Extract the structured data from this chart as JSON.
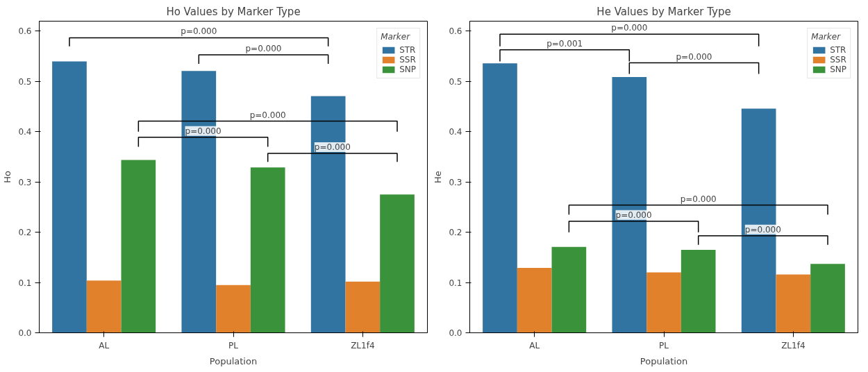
{
  "chart_data": [
    {
      "type": "bar",
      "title": "Ho Values by Marker Type",
      "xlabel": "Population",
      "ylabel": "Ho",
      "categories": [
        "AL",
        "PL",
        "ZL1f4"
      ],
      "series": [
        {
          "name": "STR",
          "color": "#3274a1",
          "values": [
            0.54,
            0.521,
            0.471
          ]
        },
        {
          "name": "SSR",
          "color": "#e1812c",
          "values": [
            0.104,
            0.095,
            0.102
          ]
        },
        {
          "name": "SNP",
          "color": "#3a923a",
          "values": [
            0.344,
            0.329,
            0.275
          ]
        }
      ],
      "ylim": [
        0,
        0.62
      ],
      "yticks": [
        {
          "value": 0,
          "label": "0.0"
        },
        {
          "value": 0.1,
          "label": "0.1"
        },
        {
          "value": 0.2,
          "label": "0.2"
        },
        {
          "value": 0.3,
          "label": "0.3"
        },
        {
          "value": 0.4,
          "label": "0.4"
        },
        {
          "value": 0.5,
          "label": "0.5"
        },
        {
          "value": 0.6,
          "label": "0.6"
        }
      ],
      "legend": "top right",
      "legend_title": "Marker",
      "grid": false,
      "annotations": [
        "p=0.000",
        "p=0.000",
        "p=0.000",
        "p=0.000",
        "p=0.000"
      ]
    },
    {
      "type": "bar",
      "title": "He Values by Marker Type",
      "xlabel": "Population",
      "ylabel": "He",
      "categories": [
        "AL",
        "PL",
        "ZL1f4"
      ],
      "series": [
        {
          "name": "STR",
          "color": "#3274a1",
          "values": [
            0.536,
            0.509,
            0.446
          ]
        },
        {
          "name": "SSR",
          "color": "#e1812c",
          "values": [
            0.129,
            0.12,
            0.116
          ]
        },
        {
          "name": "SNP",
          "color": "#3a923a",
          "values": [
            0.171,
            0.165,
            0.137
          ]
        }
      ],
      "ylim": [
        0,
        0.62
      ],
      "yticks": [
        {
          "value": 0,
          "label": "0.0"
        },
        {
          "value": 0.1,
          "label": "0.1"
        },
        {
          "value": 0.2,
          "label": "0.2"
        },
        {
          "value": 0.3,
          "label": "0.3"
        },
        {
          "value": 0.4,
          "label": "0.4"
        },
        {
          "value": 0.5,
          "label": "0.5"
        },
        {
          "value": 0.6,
          "label": "0.6"
        }
      ],
      "legend": "top right",
      "legend_title": "Marker",
      "grid": false,
      "annotations": [
        "p=0.000",
        "p=0.001",
        "p=0.000",
        "p=0.000",
        "p=0.000",
        "p=0.000"
      ]
    }
  ]
}
